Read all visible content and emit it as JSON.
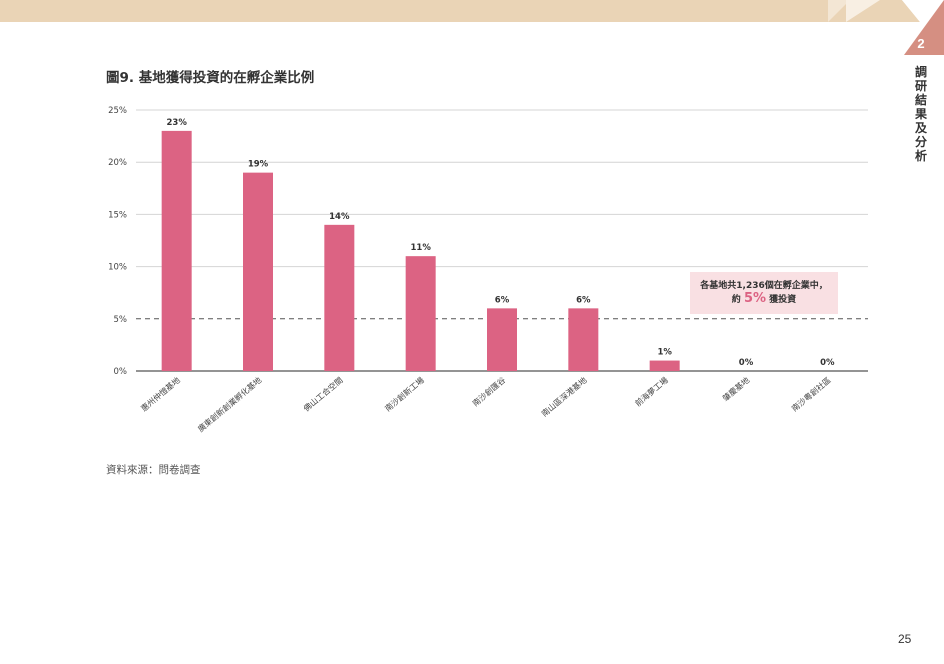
{
  "header": {
    "section_number": "2",
    "section_title": "調研結果及分析",
    "colors": {
      "band": "#ead4b6",
      "corner": "#d58f82"
    }
  },
  "figure": {
    "title": "圖9. 基地獲得投資的在孵企業比例",
    "source": "資料來源：問卷調查"
  },
  "callout": {
    "line1": "各基地共1,236個在孵企業中，",
    "line2_prefix": "約",
    "line2_value": "5%",
    "line2_suffix": "獲投資"
  },
  "page_number": "25",
  "chart_data": {
    "type": "bar",
    "categories": [
      "惠州仲愷基地",
      "廣東創新創業孵化基地",
      "佛山工合空間",
      "南沙創新工場",
      "南沙創匯谷",
      "南山區深港基地",
      "前海夢工場",
      "肇慶基地",
      "南沙粵創社區"
    ],
    "values": [
      23,
      19,
      14,
      11,
      6,
      6,
      1,
      0,
      0
    ],
    "data_labels": [
      "23%",
      "19%",
      "14%",
      "11%",
      "6%",
      "6%",
      "1%",
      "0%",
      "0%"
    ],
    "yticks": [
      "0%",
      "5%",
      "10%",
      "15%",
      "20%",
      "25%"
    ],
    "ylim": [
      0,
      25
    ],
    "reference_line": 5,
    "grid": true,
    "bar_color": "#dc6383"
  }
}
